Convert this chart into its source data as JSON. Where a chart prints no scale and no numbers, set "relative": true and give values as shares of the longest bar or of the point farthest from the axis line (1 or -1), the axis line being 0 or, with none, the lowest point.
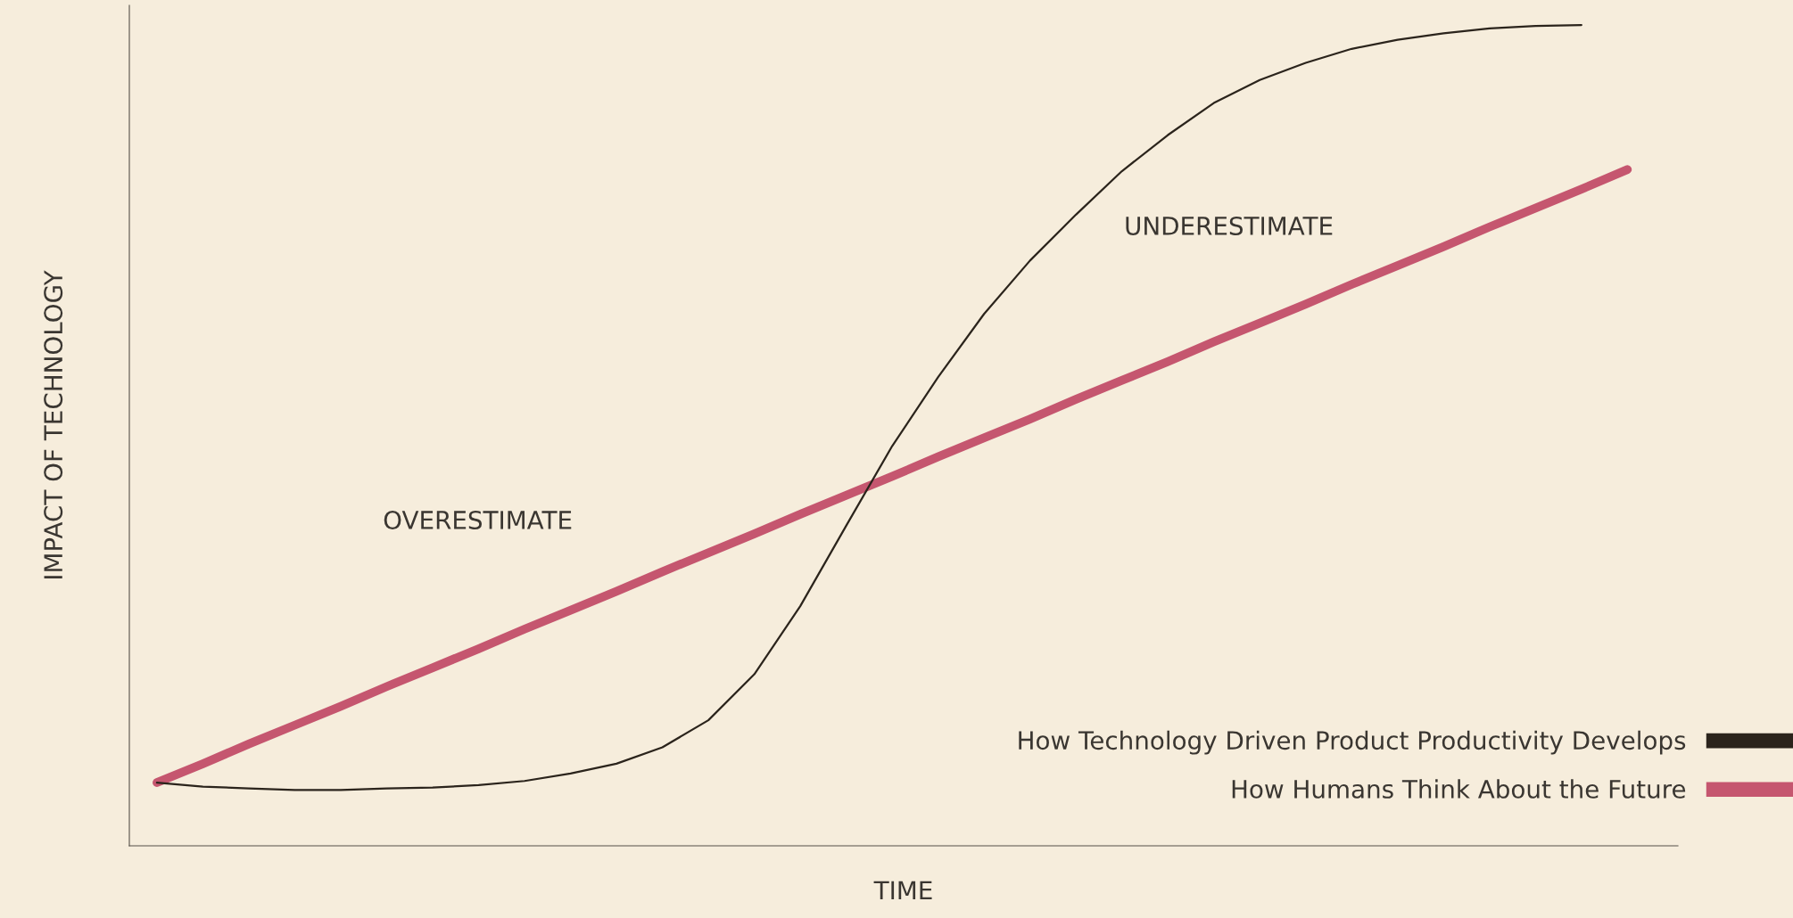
{
  "chart_data": {
    "type": "line",
    "relative": true,
    "xlabel": "TIME",
    "ylabel": "IMPACT OF TECHNOLOGY",
    "categories": [
      null,
      null,
      null,
      null,
      null,
      null,
      null,
      null,
      null,
      null,
      null,
      null,
      null,
      null,
      null,
      null,
      null,
      null,
      null,
      null,
      null,
      null,
      null,
      null,
      null,
      null,
      null,
      null,
      null,
      null,
      null,
      null,
      null
    ],
    "series": [
      {
        "name": "How Technology Driven Product Productivity Develops",
        "color": "#2b241c",
        "values": [
          0.077,
          0.072,
          0.07,
          0.068,
          0.068,
          0.07,
          0.071,
          0.074,
          0.079,
          0.088,
          0.1,
          0.12,
          0.153,
          0.209,
          0.292,
          0.39,
          0.487,
          0.571,
          0.648,
          0.713,
          0.769,
          0.822,
          0.866,
          0.905,
          0.933,
          0.954,
          0.971,
          0.982,
          0.99,
          0.996,
          0.999,
          1.0,
          null
        ]
      },
      {
        "name": "How Humans Think About the Future",
        "color": "#c5566f",
        "values": [
          0.077,
          0.1,
          0.124,
          0.147,
          0.17,
          0.194,
          0.217,
          0.24,
          0.264,
          0.287,
          0.31,
          0.334,
          0.357,
          0.38,
          0.404,
          0.427,
          0.45,
          0.474,
          0.497,
          0.52,
          0.544,
          0.567,
          0.59,
          0.614,
          0.637,
          0.66,
          0.684,
          0.707,
          0.73,
          0.754,
          0.777,
          0.8,
          0.824
        ]
      }
    ],
    "annotations": [
      "OVERESTIMATE",
      "UNDERESTIMATE"
    ],
    "legend": "bottom right",
    "grid": false,
    "marker": "none",
    "line_style": "solid"
  }
}
